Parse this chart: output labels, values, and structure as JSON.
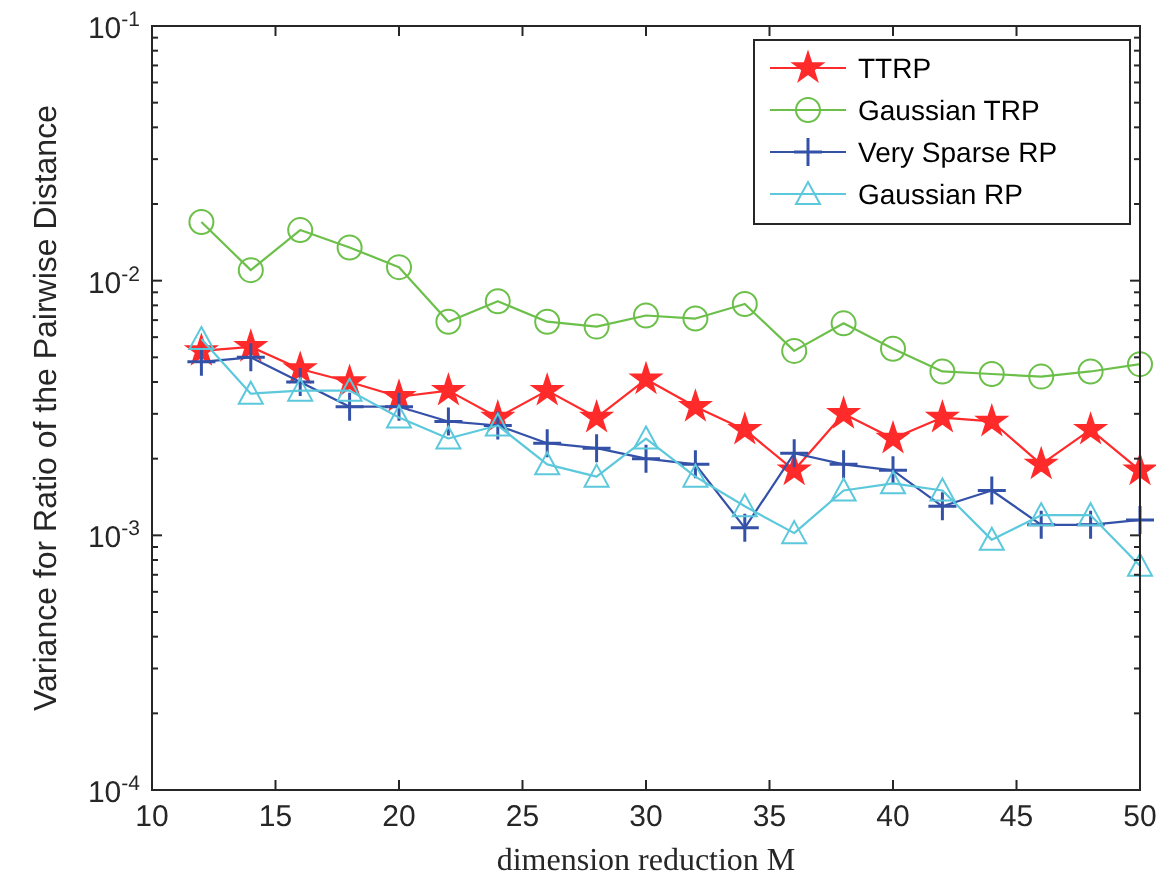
{
  "chart_data": {
    "type": "line",
    "xlabel": "dimension reduction M",
    "ylabel": "Variance for Ratio of the Pairwise Distance",
    "x": [
      12,
      14,
      16,
      18,
      20,
      22,
      24,
      26,
      28,
      30,
      32,
      34,
      36,
      38,
      40,
      42,
      44,
      46,
      48,
      50
    ],
    "xlim": [
      10,
      50
    ],
    "xticks": [
      10,
      15,
      20,
      25,
      30,
      35,
      40,
      45,
      50
    ],
    "ylim": [
      0.0001,
      0.1
    ],
    "log": true,
    "yticks": [
      {
        "value": 0.0001,
        "label": "10$^{-4}$"
      },
      {
        "value": 0.001,
        "label": "10$^{-3}$"
      },
      {
        "value": 0.01,
        "label": "10$^{-2}$"
      },
      {
        "value": 0.1,
        "label": "10$^{-1}$"
      }
    ],
    "grid": false,
    "legend": "top right",
    "line_style": "solid",
    "series": [
      {
        "name": "TTRP",
        "color": "#ff2a2a",
        "marker": "star",
        "values": [
          0.0053,
          0.0055,
          0.0045,
          0.004,
          0.0035,
          0.0037,
          0.0029,
          0.0037,
          0.0029,
          0.0041,
          0.0032,
          0.0026,
          0.0018,
          0.003,
          0.0024,
          0.0029,
          0.0028,
          0.0019,
          0.0026,
          0.0018
        ]
      },
      {
        "name": "Gaussian TRP",
        "color": "#6cc04a",
        "marker": "circle",
        "values": [
          0.017,
          0.011,
          0.0158,
          0.0135,
          0.0113,
          0.0069,
          0.0083,
          0.0069,
          0.0066,
          0.0073,
          0.0071,
          0.0081,
          0.0053,
          0.0068,
          0.0054,
          0.0044,
          0.0043,
          0.0042,
          0.0044,
          0.0047
        ]
      },
      {
        "name": "Very Sparse RP",
        "color": "#3451a8",
        "marker": "cross",
        "values": [
          0.0048,
          0.005,
          0.004,
          0.0032,
          0.0032,
          0.0028,
          0.0027,
          0.0023,
          0.0022,
          0.002,
          0.0019,
          0.00107,
          0.0021,
          0.0019,
          0.0018,
          0.0013,
          0.0015,
          0.0011,
          0.0011,
          0.00115
        ]
      },
      {
        "name": "Gaussian RP",
        "color": "#5cc8dc",
        "marker": "triangle",
        "values": [
          0.0059,
          0.0036,
          0.0037,
          0.0037,
          0.0029,
          0.0024,
          0.0027,
          0.0019,
          0.0017,
          0.0024,
          0.0017,
          0.0013,
          0.00102,
          0.0015,
          0.0016,
          0.0015,
          0.00096,
          0.0012,
          0.0012,
          0.00076
        ]
      }
    ]
  }
}
